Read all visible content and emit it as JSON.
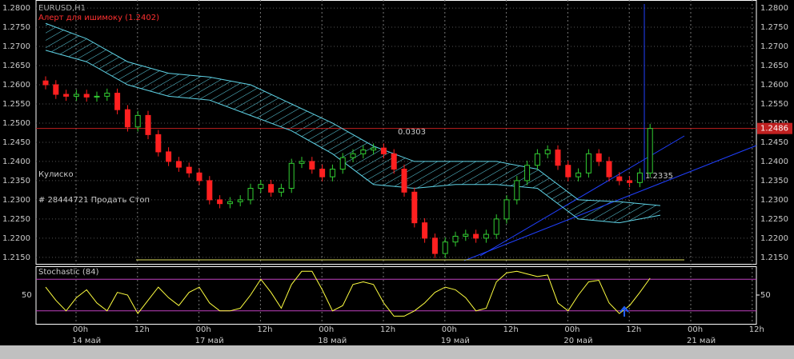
{
  "chart_data": [
    {
      "type": "candlestick",
      "alert": "Алерт для ишимоку (1.2402)",
      "annotations": [
        "Кулиско",
        "# 28444721 Продать Стоп",
        "0.0303",
        "1.2335"
      ],
      "ylim": [
        1.2133,
        1.2821
      ],
      "yticks": [
        {
          "value": 1.215,
          "label": "1.2150"
        },
        {
          "value": 1.22,
          "label": "1.2200"
        },
        {
          "value": 1.225,
          "label": "1.2250"
        },
        {
          "value": 1.23,
          "label": "1.2300"
        },
        {
          "value": 1.235,
          "label": "1.2350"
        },
        {
          "value": 1.24,
          "label": "1.2400"
        },
        {
          "value": 1.245,
          "label": "1.2450"
        },
        {
          "value": 1.25,
          "label": "1.2500"
        },
        {
          "value": 1.255,
          "label": "1.2550"
        },
        {
          "value": 1.26,
          "label": "1.2600"
        },
        {
          "value": 1.265,
          "label": "1.2650"
        },
        {
          "value": 1.27,
          "label": "1.2700"
        },
        {
          "value": 1.275,
          "label": "1.2750"
        },
        {
          "value": 1.28,
          "label": "1.2800"
        }
      ],
      "time_labels": [
        "00h",
        "12h",
        "00h",
        "12h",
        "00h",
        "12h",
        "00h",
        "12h",
        "00h",
        "12h",
        "00h",
        "12h"
      ],
      "date_labels": [
        "14 май",
        "17 май",
        "18 май",
        "19 май",
        "20 май",
        "21 май"
      ],
      "up_color": "#32cd32",
      "down_color": "#ff2020",
      "open": [
        1.261,
        1.26,
        1.2575,
        1.257,
        1.2575,
        1.2568,
        1.257,
        1.2578,
        1.2535,
        1.249,
        1.252,
        1.247,
        1.2425,
        1.24,
        1.2385,
        1.237,
        1.235,
        1.23,
        1.229,
        1.2295,
        1.23,
        1.233,
        1.234,
        1.232,
        1.233,
        1.2395,
        1.24,
        1.238,
        1.236,
        1.238,
        1.241,
        1.242,
        1.243,
        1.2435,
        1.242,
        1.238,
        1.232,
        1.224,
        1.22,
        1.216,
        1.219,
        1.2205,
        1.221,
        1.22,
        1.221,
        1.225,
        1.23,
        1.235,
        1.239,
        1.242,
        1.243,
        1.239,
        1.236,
        1.237,
        1.242,
        1.24,
        1.236,
        1.235,
        1.2345,
        1.237
      ],
      "high": [
        1.2622,
        1.2612,
        1.2587,
        1.2587,
        1.2587,
        1.2582,
        1.259,
        1.259,
        1.2547,
        1.2532,
        1.2532,
        1.2482,
        1.2437,
        1.2412,
        1.2397,
        1.2382,
        1.2362,
        1.2312,
        1.2307,
        1.2312,
        1.2342,
        1.2352,
        1.2352,
        1.2342,
        1.2407,
        1.2412,
        1.2412,
        1.2392,
        1.2392,
        1.2422,
        1.2432,
        1.2442,
        1.2447,
        1.2447,
        1.2432,
        1.2392,
        1.2332,
        1.2252,
        1.2212,
        1.2202,
        1.2217,
        1.2222,
        1.2222,
        1.2222,
        1.2262,
        1.2312,
        1.2362,
        1.2402,
        1.2432,
        1.2442,
        1.2442,
        1.2402,
        1.2382,
        1.2432,
        1.2432,
        1.2412,
        1.2372,
        1.2362,
        1.2382,
        1.2498
      ],
      "low": [
        1.2588,
        1.2563,
        1.2558,
        1.2558,
        1.2556,
        1.2556,
        1.2558,
        1.2523,
        1.2478,
        1.2478,
        1.2458,
        1.2413,
        1.2388,
        1.2373,
        1.2358,
        1.2338,
        1.2288,
        1.2278,
        1.2278,
        1.2283,
        1.2288,
        1.2318,
        1.2308,
        1.2308,
        1.2318,
        1.2383,
        1.2368,
        1.2348,
        1.2348,
        1.2368,
        1.2398,
        1.2408,
        1.2418,
        1.2408,
        1.2368,
        1.2308,
        1.2228,
        1.2188,
        1.2148,
        1.2148,
        1.2178,
        1.2193,
        1.2188,
        1.2188,
        1.2198,
        1.2238,
        1.2288,
        1.2338,
        1.2378,
        1.2408,
        1.2378,
        1.2348,
        1.2348,
        1.2358,
        1.2388,
        1.2348,
        1.2338,
        1.2333,
        1.2333,
        1.2358
      ],
      "close": [
        1.26,
        1.2575,
        1.257,
        1.2575,
        1.2568,
        1.257,
        1.2578,
        1.2535,
        1.249,
        1.252,
        1.247,
        1.2425,
        1.24,
        1.2385,
        1.237,
        1.235,
        1.23,
        1.229,
        1.2295,
        1.23,
        1.233,
        1.234,
        1.232,
        1.233,
        1.2395,
        1.24,
        1.238,
        1.236,
        1.238,
        1.241,
        1.242,
        1.243,
        1.2435,
        1.242,
        1.238,
        1.232,
        1.224,
        1.22,
        1.216,
        1.219,
        1.2205,
        1.221,
        1.22,
        1.221,
        1.225,
        1.23,
        1.235,
        1.239,
        1.242,
        1.243,
        1.239,
        1.236,
        1.237,
        1.242,
        1.24,
        1.236,
        1.235,
        1.2345,
        1.237,
        1.2486
      ],
      "cloud": {
        "color": "#5fd3e6",
        "upper": [
          1.276,
          1.272,
          1.266,
          1.263,
          1.262,
          1.26,
          1.255,
          1.25,
          1.244,
          1.24,
          1.24,
          1.24,
          1.238,
          1.23,
          1.2295,
          1.2285
        ],
        "lower": [
          1.269,
          1.266,
          1.26,
          1.257,
          1.256,
          1.252,
          1.248,
          1.242,
          1.234,
          1.233,
          1.234,
          1.234,
          1.233,
          1.225,
          1.224,
          1.226
        ]
      }
    },
    {
      "type": "line",
      "title": "Stochastic (84)",
      "ylim": [
        0,
        100
      ],
      "yticks": [
        50
      ],
      "levels": [
        20,
        80
      ],
      "level_color": "#c040c0",
      "series": [
        {
          "color": "#ffff40",
          "values": [
            65,
            40,
            20,
            45,
            60,
            35,
            20,
            55,
            50,
            15,
            40,
            65,
            45,
            30,
            55,
            65,
            35,
            20,
            20,
            25,
            50,
            80,
            55,
            25,
            70,
            95,
            95,
            60,
            20,
            30,
            70,
            75,
            70,
            35,
            10,
            10,
            20,
            35,
            55,
            65,
            60,
            45,
            20,
            25,
            75,
            92,
            95,
            90,
            85,
            88,
            35,
            20,
            50,
            75,
            78,
            35,
            15,
            30,
            55,
            82
          ]
        }
      ]
    }
  ]
}
